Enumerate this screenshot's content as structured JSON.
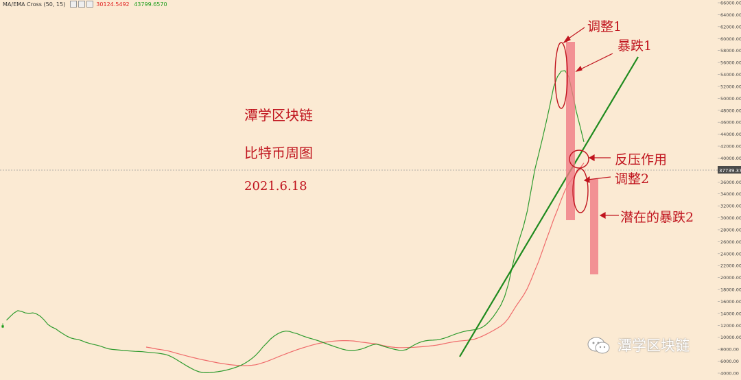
{
  "indicator": {
    "name": "MA/EMA Cross (50, 15)",
    "value1": "30124.5492",
    "value2": "43799.6570",
    "value1_color": "#e02020",
    "value2_color": "#1a9c1a"
  },
  "titles": {
    "line1": "潭学区块链",
    "line2": "比特币周图",
    "line3": "2021.6.18"
  },
  "annotations": {
    "adjust1": "调整1",
    "crash1": "暴跌1",
    "resistance": "反压作用",
    "adjust2": "调整2",
    "crash2": "潜在的暴跌2"
  },
  "watermark": {
    "text": "潭学区块链",
    "icon": "wechat-icon"
  },
  "colors": {
    "up": "#1a9c1a",
    "down": "#c0141e",
    "ma_fast": "#2e9b2e",
    "ma_slow": "#ef6a6a",
    "trendline": "#1e8a1e",
    "annotation": "#c0141e",
    "highlight": "#f07b85"
  },
  "chart_data": {
    "type": "candlestick",
    "interval": "weekly",
    "ylim": [
      4000,
      66000
    ],
    "ytick_step": 2000,
    "current_price": "37739.37",
    "indicator_lines": [
      "MA 50",
      "EMA 15"
    ],
    "yticks": [
      "66000.00",
      "64000.00",
      "62000.00",
      "60000.00",
      "58000.00",
      "56000.00",
      "54000.00",
      "52000.00",
      "50000.00",
      "48000.00",
      "46000.00",
      "44000.00",
      "42000.00",
      "40000.00",
      "38000.00",
      "36000.00",
      "34000.00",
      "32000.00",
      "30000.00",
      "28000.00",
      "26000.00",
      "24000.00",
      "22000.00",
      "20000.00",
      "18000.00",
      "16000.00",
      "14000.00",
      "12000.00",
      "10000.00",
      "8000.00",
      "6000.00",
      "4000.00"
    ]
  }
}
